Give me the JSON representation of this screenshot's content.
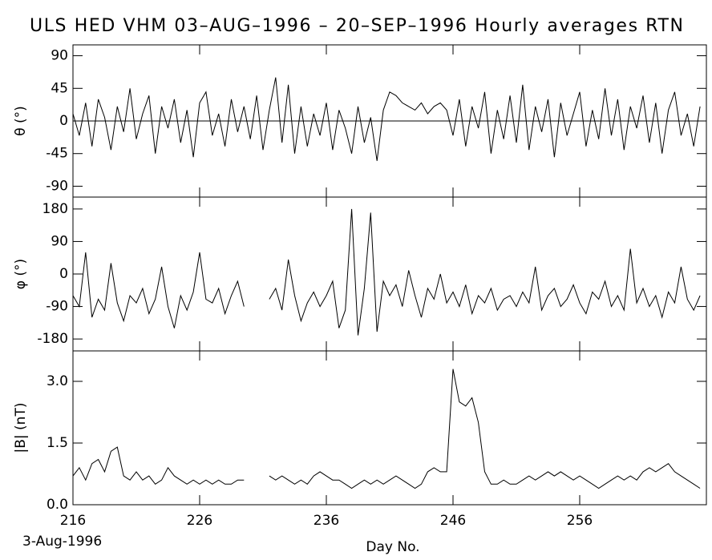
{
  "chart_data": [
    {
      "type": "line",
      "title": "ULS HED VHM  03–AUG–1996 – 20–SEP–1996  Hourly averages   RTN",
      "ylabel": "θ (°)",
      "x": [
        216,
        216.5,
        217,
        217.5,
        218,
        218.5,
        219,
        219.5,
        220,
        220.5,
        221,
        221.5,
        222,
        222.5,
        223,
        223.5,
        224,
        224.5,
        225,
        225.5,
        226,
        226.5,
        227,
        227.5,
        228,
        228.5,
        229,
        229.5,
        230,
        230.5,
        231,
        231.5,
        232,
        232.5,
        233,
        233.5,
        234,
        234.5,
        235,
        235.5,
        236,
        236.5,
        237,
        237.5,
        238,
        238.5,
        239,
        239.5,
        240,
        240.5,
        241,
        241.5,
        242,
        242.5,
        243,
        243.5,
        244,
        244.5,
        245,
        245.5,
        246,
        246.5,
        247,
        247.5,
        248,
        248.5,
        249,
        249.5,
        250,
        250.5,
        251,
        251.5,
        252,
        252.5,
        253,
        253.5,
        254,
        254.5,
        255,
        255.5,
        256,
        256.5,
        257,
        257.5,
        258,
        258.5,
        259,
        259.5,
        260,
        260.5,
        261,
        261.5,
        262,
        262.5,
        263,
        263.5,
        264,
        264.5,
        265,
        265.5
      ],
      "values": [
        10,
        -20,
        25,
        -35,
        30,
        5,
        -40,
        20,
        -15,
        45,
        -25,
        10,
        35,
        -45,
        20,
        -10,
        30,
        -30,
        15,
        -50,
        25,
        40,
        -20,
        10,
        -35,
        30,
        -15,
        20,
        -25,
        35,
        -40,
        15,
        60,
        -30,
        50,
        -45,
        20,
        -35,
        10,
        -20,
        25,
        -40,
        15,
        -10,
        -45,
        20,
        -30,
        5,
        -55,
        15,
        40,
        35,
        25,
        20,
        15,
        25,
        10,
        20,
        25,
        15,
        -20,
        30,
        -35,
        20,
        -10,
        40,
        -45,
        15,
        -25,
        35,
        -30,
        50,
        -40,
        20,
        -15,
        30,
        -50,
        25,
        -20,
        10,
        40,
        -35,
        15,
        -25,
        45,
        -20,
        30,
        -40,
        20,
        -10,
        35,
        -30,
        25,
        -45,
        15,
        40,
        -20,
        10,
        -35,
        20
      ],
      "xlim": [
        216,
        266
      ],
      "xticks": [
        216,
        226,
        236,
        246,
        256
      ],
      "ylim": [
        -105,
        105
      ],
      "yticks": [
        -90,
        -45,
        0,
        45,
        90
      ],
      "hline": 0
    },
    {
      "type": "line",
      "ylabel": "φ (°)",
      "x": [
        216,
        216.5,
        217,
        217.5,
        218,
        218.5,
        219,
        219.5,
        220,
        220.5,
        221,
        221.5,
        222,
        222.5,
        223,
        223.5,
        224,
        224.5,
        225,
        225.5,
        226,
        226.5,
        227,
        227.5,
        228,
        228.5,
        229,
        229.5,
        230,
        230.5,
        231,
        231.5,
        232,
        232.5,
        233,
        233.5,
        234,
        234.5,
        235,
        235.5,
        236,
        236.5,
        237,
        237.5,
        238,
        238.5,
        239,
        239.5,
        240,
        240.5,
        241,
        241.5,
        242,
        242.5,
        243,
        243.5,
        244,
        244.5,
        245,
        245.5,
        246,
        246.5,
        247,
        247.5,
        248,
        248.5,
        249,
        249.5,
        250,
        250.5,
        251,
        251.5,
        252,
        252.5,
        253,
        253.5,
        254,
        254.5,
        255,
        255.5,
        256,
        256.5,
        257,
        257.5,
        258,
        258.5,
        259,
        259.5,
        260,
        260.5,
        261,
        261.5,
        262,
        262.5,
        263,
        263.5,
        264,
        264.5,
        265,
        265.5
      ],
      "values": [
        -60,
        -90,
        60,
        -120,
        -70,
        -100,
        30,
        -80,
        -130,
        -60,
        -80,
        -40,
        -110,
        -70,
        20,
        -90,
        -150,
        -60,
        -100,
        -50,
        60,
        -70,
        -80,
        -40,
        -110,
        -60,
        -20,
        -90,
        null,
        null,
        null,
        -70,
        -40,
        -100,
        40,
        -60,
        -130,
        -80,
        -50,
        -90,
        -60,
        -20,
        -150,
        -100,
        180,
        -170,
        -40,
        170,
        -160,
        -20,
        -60,
        -30,
        -90,
        10,
        -60,
        -120,
        -40,
        -70,
        0,
        -80,
        -50,
        -90,
        -30,
        -110,
        -60,
        -80,
        -40,
        -100,
        -70,
        -60,
        -90,
        -50,
        -80,
        20,
        -100,
        -60,
        -40,
        -90,
        -70,
        -30,
        -80,
        -110,
        -50,
        -70,
        -20,
        -90,
        -60,
        -100,
        70,
        -80,
        -40,
        -90,
        -60,
        -120,
        -50,
        -80,
        20,
        -70,
        -100,
        -60
      ],
      "xlim": [
        216,
        266
      ],
      "xticks": [
        216,
        226,
        236,
        246,
        256
      ],
      "ylim": [
        -213,
        213
      ],
      "yticks": [
        -180,
        -90,
        0,
        90,
        180
      ]
    },
    {
      "type": "line",
      "ylabel": "|B| (nT)",
      "xlabel": "Day No.",
      "note": "3-Aug-1996",
      "x": [
        216,
        216.5,
        217,
        217.5,
        218,
        218.5,
        219,
        219.5,
        220,
        220.5,
        221,
        221.5,
        222,
        222.5,
        223,
        223.5,
        224,
        224.5,
        225,
        225.5,
        226,
        226.5,
        227,
        227.5,
        228,
        228.5,
        229,
        229.5,
        230,
        230.5,
        231,
        231.5,
        232,
        232.5,
        233,
        233.5,
        234,
        234.5,
        235,
        235.5,
        236,
        236.5,
        237,
        237.5,
        238,
        238.5,
        239,
        239.5,
        240,
        240.5,
        241,
        241.5,
        242,
        242.5,
        243,
        243.5,
        244,
        244.5,
        245,
        245.5,
        246,
        246.5,
        247,
        247.5,
        248,
        248.5,
        249,
        249.5,
        250,
        250.5,
        251,
        251.5,
        252,
        252.5,
        253,
        253.5,
        254,
        254.5,
        255,
        255.5,
        256,
        256.5,
        257,
        257.5,
        258,
        258.5,
        259,
        259.5,
        260,
        260.5,
        261,
        261.5,
        262,
        262.5,
        263,
        263.5,
        264,
        264.5,
        265,
        265.5
      ],
      "values": [
        0.7,
        0.9,
        0.6,
        1.0,
        1.1,
        0.8,
        1.3,
        1.4,
        0.7,
        0.6,
        0.8,
        0.6,
        0.7,
        0.5,
        0.6,
        0.9,
        0.7,
        0.6,
        0.5,
        0.6,
        0.5,
        0.6,
        0.5,
        0.6,
        0.5,
        0.5,
        0.6,
        0.6,
        null,
        null,
        null,
        0.7,
        0.6,
        0.7,
        0.6,
        0.5,
        0.6,
        0.5,
        0.7,
        0.8,
        0.7,
        0.6,
        0.6,
        0.5,
        0.4,
        0.5,
        0.6,
        0.5,
        0.6,
        0.5,
        0.6,
        0.7,
        0.6,
        0.5,
        0.4,
        0.5,
        0.8,
        0.9,
        0.8,
        0.8,
        3.3,
        2.5,
        2.4,
        2.6,
        2.0,
        0.8,
        0.5,
        0.5,
        0.6,
        0.5,
        0.5,
        0.6,
        0.7,
        0.6,
        0.7,
        0.8,
        0.7,
        0.8,
        0.7,
        0.6,
        0.7,
        0.6,
        0.5,
        0.4,
        0.5,
        0.6,
        0.7,
        0.6,
        0.7,
        0.6,
        0.8,
        0.9,
        0.8,
        0.9,
        1.0,
        0.8,
        0.7,
        0.6,
        0.5,
        0.4
      ],
      "xlim": [
        216,
        266
      ],
      "xticks": [
        216,
        226,
        236,
        246,
        256
      ],
      "ylim": [
        0,
        3.74
      ],
      "yticks": [
        {
          "value": 0,
          "label": "0.0"
        },
        1.5,
        {
          "value": 3,
          "label": "3.0"
        }
      ]
    }
  ]
}
